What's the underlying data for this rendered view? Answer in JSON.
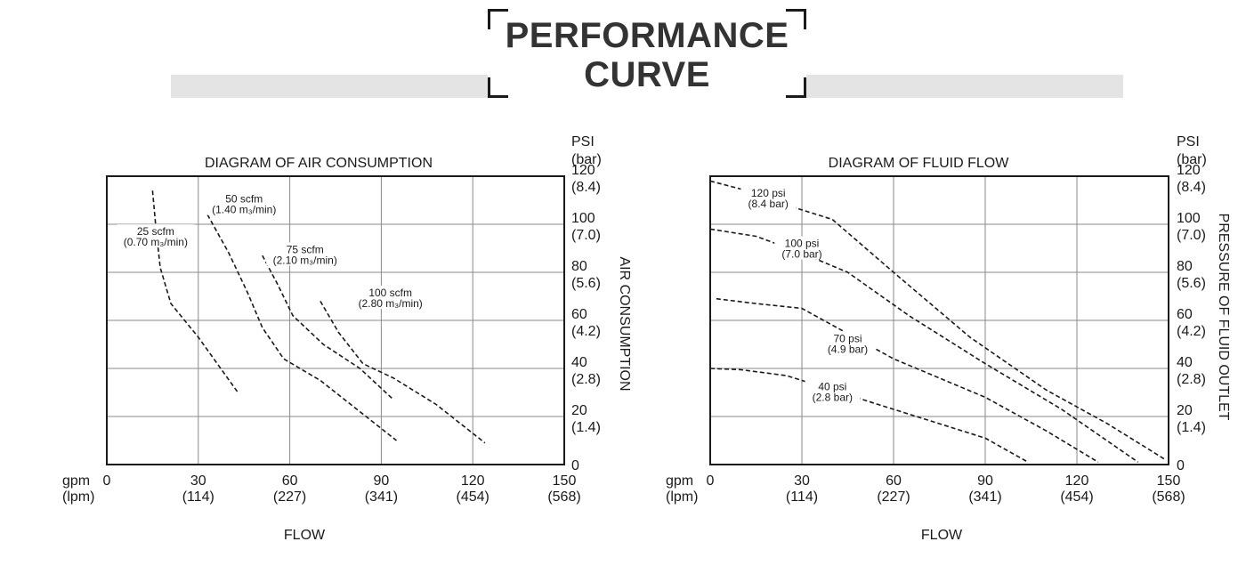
{
  "page_title": {
    "line1": "PERFORMANCE",
    "line2": "CURVE"
  },
  "colors": {
    "banner": "#e4e4e4",
    "ink": "#1a1a1a"
  },
  "chart_data": [
    {
      "type": "line",
      "title": "DIAGRAM OF AIR CONSUMPTION",
      "xlabel": "FLOW",
      "ylabel": "AIR CONSUMPTION",
      "x_unit_labels": [
        "gpm",
        "(lpm)"
      ],
      "y_unit_labels": [
        "PSI",
        "(bar)"
      ],
      "xlim": [
        0,
        150
      ],
      "ylim": [
        0,
        120
      ],
      "x_ticks": [
        {
          "v": 0,
          "a": "0",
          "b": ""
        },
        {
          "v": 30,
          "a": "30",
          "b": "(114)"
        },
        {
          "v": 60,
          "a": "60",
          "b": "(227)"
        },
        {
          "v": 90,
          "a": "90",
          "b": "(341)"
        },
        {
          "v": 120,
          "a": "120",
          "b": "(454)"
        },
        {
          "v": 150,
          "a": "150",
          "b": "(568)"
        }
      ],
      "y_ticks": [
        {
          "v": 0,
          "a": "0",
          "b": ""
        },
        {
          "v": 20,
          "a": "20",
          "b": "(1.4)"
        },
        {
          "v": 40,
          "a": "40",
          "b": "(2.8)"
        },
        {
          "v": 60,
          "a": "60",
          "b": "(4.2)"
        },
        {
          "v": 80,
          "a": "80",
          "b": "(5.6)"
        },
        {
          "v": 100,
          "a": "100",
          "b": "(7.0)"
        },
        {
          "v": 120,
          "a": "120",
          "b": "(8.4)"
        }
      ],
      "grid": true,
      "y_label_side": "right",
      "series": [
        {
          "name": "25 scfm",
          "sub": "(0.70 m₃/min)",
          "label_at": [
            16,
            95.5
          ],
          "x": [
            15,
            16,
            17.5,
            21,
            30,
            43
          ],
          "y": [
            114,
            100,
            82,
            67,
            53,
            30
          ]
        },
        {
          "name": "50 scfm",
          "sub": "(1.40 m₃/min)",
          "label_at": [
            45,
            109
          ],
          "x": [
            33,
            40,
            46,
            51,
            58,
            70,
            95
          ],
          "y": [
            104,
            88,
            72,
            57,
            44,
            35,
            10
          ]
        },
        {
          "name": "75 scfm",
          "sub": "(2.10 m₃/min)",
          "label_at": [
            65,
            88
          ],
          "x": [
            51,
            56,
            61,
            71,
            83,
            94
          ],
          "y": [
            87,
            75,
            62,
            50,
            40,
            27
          ]
        },
        {
          "name": "100 scfm",
          "sub": "(2.80 m₃/min)",
          "label_at": [
            93,
            70
          ],
          "x": [
            70,
            76,
            84,
            94,
            108,
            124
          ],
          "y": [
            68,
            55,
            42,
            36,
            25,
            9
          ]
        }
      ]
    },
    {
      "type": "line",
      "title": "DIAGRAM OF FLUID FLOW",
      "xlabel": "FLOW",
      "ylabel": "PRESSURE OF FLUID OUTLET",
      "x_unit_labels": [
        "gpm",
        "(lpm)"
      ],
      "y_unit_labels": [
        "PSI",
        "(bar)"
      ],
      "xlim": [
        0,
        150
      ],
      "ylim": [
        0,
        120
      ],
      "x_ticks": [
        {
          "v": 0,
          "a": "0",
          "b": ""
        },
        {
          "v": 30,
          "a": "30",
          "b": "(114)"
        },
        {
          "v": 60,
          "a": "60",
          "b": "(227)"
        },
        {
          "v": 90,
          "a": "90",
          "b": "(341)"
        },
        {
          "v": 120,
          "a": "120",
          "b": "(454)"
        },
        {
          "v": 150,
          "a": "150",
          "b": "(568)"
        }
      ],
      "y_ticks": [
        {
          "v": 0,
          "a": "0",
          "b": ""
        },
        {
          "v": 20,
          "a": "20",
          "b": "(1.4)"
        },
        {
          "v": 40,
          "a": "40",
          "b": "(2.8)"
        },
        {
          "v": 60,
          "a": "60",
          "b": "(4.2)"
        },
        {
          "v": 80,
          "a": "80",
          "b": "(5.6)"
        },
        {
          "v": 100,
          "a": "100",
          "b": "(7.0)"
        },
        {
          "v": 120,
          "a": "120",
          "b": "(8.4)"
        }
      ],
      "grid": true,
      "y_label_side": "right",
      "series": [
        {
          "name": "120 psi",
          "sub": "(8.4 bar)",
          "label_at": [
            19,
            111.5
          ],
          "x": [
            0,
            12,
            25,
            40,
            60,
            85,
            110,
            130,
            149
          ],
          "y": [
            118,
            114,
            108,
            102,
            80,
            53,
            31,
            17,
            2
          ]
        },
        {
          "name": "100 psi",
          "sub": "(7.0 bar)",
          "label_at": [
            30,
            90.5
          ],
          "x": [
            0,
            15,
            30,
            45,
            65,
            90,
            115,
            140
          ],
          "y": [
            98,
            95,
            88,
            80,
            62,
            42,
            23,
            1
          ]
        },
        {
          "name": "70 psi",
          "sub": "(4.9 bar)",
          "label_at": [
            45,
            51
          ],
          "x": [
            2,
            15,
            30,
            40,
            60,
            90,
            110,
            127
          ],
          "y": [
            69,
            67,
            65,
            58,
            44,
            28,
            14,
            1
          ]
        },
        {
          "name": "40 psi",
          "sub": "(2.8 bar)",
          "label_at": [
            40,
            31
          ],
          "x": [
            0,
            10,
            25,
            40,
            55,
            75,
            90,
            104
          ],
          "y": [
            40,
            39.5,
            37,
            31,
            25,
            17,
            11,
            1
          ]
        }
      ]
    }
  ]
}
